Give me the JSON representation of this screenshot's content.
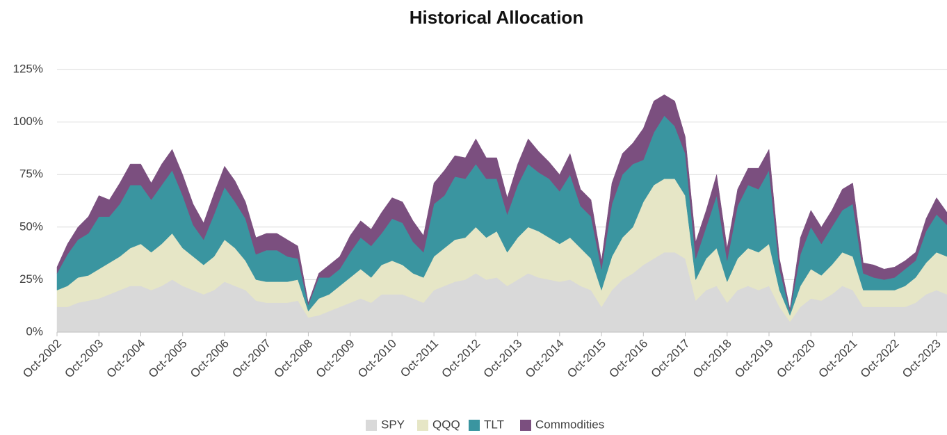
{
  "chart_data": {
    "type": "stacked-area",
    "title": "Historical Allocation",
    "categories": [
      "Oct-2002",
      "Jan-2003",
      "Apr-2003",
      "Jul-2003",
      "Oct-2003",
      "Jan-2004",
      "Apr-2004",
      "Jul-2004",
      "Oct-2004",
      "Jan-2005",
      "Apr-2005",
      "Jul-2005",
      "Oct-2005",
      "Jan-2006",
      "Apr-2006",
      "Jul-2006",
      "Oct-2006",
      "Jan-2007",
      "Apr-2007",
      "Jul-2007",
      "Oct-2007",
      "Jan-2008",
      "Apr-2008",
      "Jul-2008",
      "Oct-2008",
      "Jan-2009",
      "Apr-2009",
      "Jul-2009",
      "Oct-2009",
      "Jan-2010",
      "Apr-2010",
      "Jul-2010",
      "Oct-2010",
      "Jan-2011",
      "Apr-2011",
      "Jul-2011",
      "Oct-2011",
      "Jan-2012",
      "Apr-2012",
      "Jul-2012",
      "Oct-2012",
      "Jan-2013",
      "Apr-2013",
      "Jul-2013",
      "Oct-2013",
      "Jan-2014",
      "Apr-2014",
      "Jul-2014",
      "Oct-2014",
      "Jan-2015",
      "Apr-2015",
      "Jul-2015",
      "Oct-2015",
      "Jan-2016",
      "Apr-2016",
      "Jul-2016",
      "Oct-2016",
      "Jan-2017",
      "Apr-2017",
      "Jul-2017",
      "Oct-2017",
      "Jan-2018",
      "Apr-2018",
      "Jul-2018",
      "Oct-2018",
      "Jan-2019",
      "Apr-2019",
      "Jul-2019",
      "Oct-2019",
      "Jan-2020",
      "Apr-2020",
      "Jul-2020",
      "Oct-2020",
      "Jan-2021",
      "Apr-2021",
      "Jul-2021",
      "Oct-2021",
      "Jan-2022",
      "Apr-2022",
      "Jul-2022",
      "Oct-2022",
      "Jan-2023",
      "Apr-2023",
      "Jul-2023",
      "Oct-2023",
      "Jan-2024"
    ],
    "xticks": [
      "Oct-2002",
      "Oct-2003",
      "Oct-2004",
      "Oct-2005",
      "Oct-2006",
      "Oct-2007",
      "Oct-2008",
      "Oct-2009",
      "Oct-2010",
      "Oct-2011",
      "Oct-2012",
      "Oct-2013",
      "Oct-2014",
      "Oct-2015",
      "Oct-2016",
      "Oct-2017",
      "Oct-2018",
      "Oct-2019",
      "Oct-2020",
      "Oct-2021",
      "Oct-2022",
      "Oct-2023"
    ],
    "series": [
      {
        "name": "SPY",
        "color": "#d9d9d9",
        "values": [
          12,
          12,
          14,
          15,
          16,
          18,
          20,
          22,
          22,
          20,
          22,
          25,
          22,
          20,
          18,
          20,
          24,
          22,
          20,
          15,
          14,
          14,
          14,
          15,
          7,
          8,
          10,
          12,
          14,
          16,
          14,
          18,
          18,
          18,
          16,
          14,
          20,
          22,
          24,
          25,
          28,
          25,
          26,
          22,
          25,
          28,
          26,
          25,
          24,
          25,
          22,
          20,
          12,
          20,
          25,
          28,
          32,
          35,
          38,
          38,
          35,
          15,
          20,
          22,
          14,
          20,
          22,
          20,
          22,
          12,
          5,
          12,
          16,
          15,
          18,
          22,
          20,
          12,
          12,
          12,
          12,
          12,
          14,
          18,
          20,
          18
        ]
      },
      {
        "name": "QQQ",
        "color": "#e6e6c6",
        "values": [
          8,
          10,
          12,
          12,
          14,
          15,
          16,
          18,
          20,
          18,
          20,
          22,
          18,
          16,
          14,
          16,
          20,
          18,
          14,
          10,
          10,
          10,
          10,
          10,
          3,
          8,
          8,
          10,
          12,
          14,
          12,
          14,
          16,
          14,
          12,
          12,
          16,
          18,
          20,
          20,
          22,
          20,
          22,
          16,
          20,
          22,
          22,
          20,
          18,
          20,
          18,
          15,
          8,
          16,
          20,
          22,
          30,
          35,
          35,
          35,
          30,
          10,
          15,
          18,
          10,
          15,
          18,
          18,
          20,
          8,
          3,
          10,
          14,
          12,
          14,
          16,
          16,
          8,
          8,
          8,
          8,
          10,
          12,
          15,
          18,
          18
        ]
      },
      {
        "name": "TLT",
        "color": "#3a95a0",
        "values": [
          8,
          15,
          18,
          20,
          25,
          22,
          25,
          30,
          28,
          25,
          28,
          30,
          25,
          15,
          12,
          20,
          25,
          22,
          20,
          12,
          15,
          15,
          12,
          10,
          3,
          10,
          8,
          8,
          12,
          15,
          15,
          15,
          20,
          20,
          15,
          12,
          25,
          25,
          30,
          28,
          30,
          28,
          25,
          18,
          25,
          30,
          28,
          28,
          25,
          30,
          20,
          20,
          10,
          25,
          30,
          30,
          20,
          25,
          30,
          25,
          20,
          10,
          15,
          25,
          10,
          25,
          30,
          30,
          35,
          10,
          2,
          15,
          20,
          15,
          18,
          20,
          25,
          8,
          6,
          5,
          6,
          8,
          8,
          15,
          18,
          15
        ]
      },
      {
        "name": "Commodities",
        "color": "#7b4f7f",
        "values": [
          3,
          5,
          6,
          8,
          10,
          8,
          10,
          10,
          10,
          8,
          10,
          10,
          10,
          10,
          8,
          10,
          10,
          10,
          8,
          8,
          8,
          8,
          8,
          6,
          1,
          2,
          6,
          6,
          8,
          8,
          8,
          10,
          10,
          10,
          10,
          8,
          10,
          12,
          10,
          10,
          12,
          10,
          10,
          8,
          10,
          12,
          10,
          8,
          8,
          10,
          8,
          8,
          4,
          10,
          10,
          10,
          15,
          15,
          10,
          12,
          8,
          8,
          8,
          10,
          6,
          8,
          8,
          10,
          10,
          5,
          1,
          8,
          8,
          8,
          8,
          10,
          10,
          5,
          6,
          5,
          5,
          4,
          4,
          6,
          8,
          6
        ]
      }
    ],
    "ylim": [
      0,
      125
    ],
    "yticks": [
      {
        "value": 0,
        "label": "0%"
      },
      {
        "value": 25,
        "label": "25%"
      },
      {
        "value": 50,
        "label": "50%"
      },
      {
        "value": 75,
        "label": "75%"
      },
      {
        "value": 100,
        "label": "100%"
      },
      {
        "value": 125,
        "label": "125%"
      }
    ],
    "grid": true,
    "legend": "bottom"
  }
}
